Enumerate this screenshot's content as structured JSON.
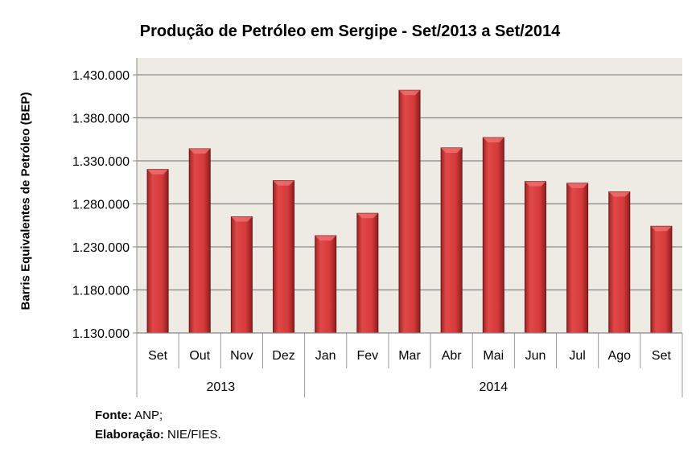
{
  "chart_data": {
    "type": "bar",
    "title": "Produção de Petróleo em Sergipe - Set/2013 a Set/2014",
    "ylabel": "Barris Equivalentes de Petróleo (BEP)",
    "xlabel": "",
    "categories": [
      "Set",
      "Out",
      "Nov",
      "Dez",
      "Jan",
      "Fev",
      "Mar",
      "Abr",
      "Mai",
      "Jun",
      "Jul",
      "Ago",
      "Set"
    ],
    "groups": [
      {
        "label": "2013",
        "count": 4
      },
      {
        "label": "2014",
        "count": 9
      }
    ],
    "values": [
      1320000,
      1344000,
      1265000,
      1307000,
      1243000,
      1269000,
      1412000,
      1345000,
      1357000,
      1306000,
      1304000,
      1294000,
      1254000
    ],
    "ylim": [
      1130000,
      1450000
    ],
    "yticks": [
      1130000,
      1180000,
      1230000,
      1280000,
      1330000,
      1380000,
      1430000
    ],
    "ytick_labels": [
      "1.130.000",
      "1.180.000",
      "1.230.000",
      "1.280.000",
      "1.330.000",
      "1.380.000",
      "1.430.000"
    ],
    "grid": true,
    "bar_color": "#d63a3a",
    "plot_bg": "#edebe3"
  },
  "source": {
    "fonte_label": "Fonte:",
    "fonte_value": " ANP;",
    "elab_label": "Elaboração:",
    "elab_value": " NIE/FIES."
  }
}
